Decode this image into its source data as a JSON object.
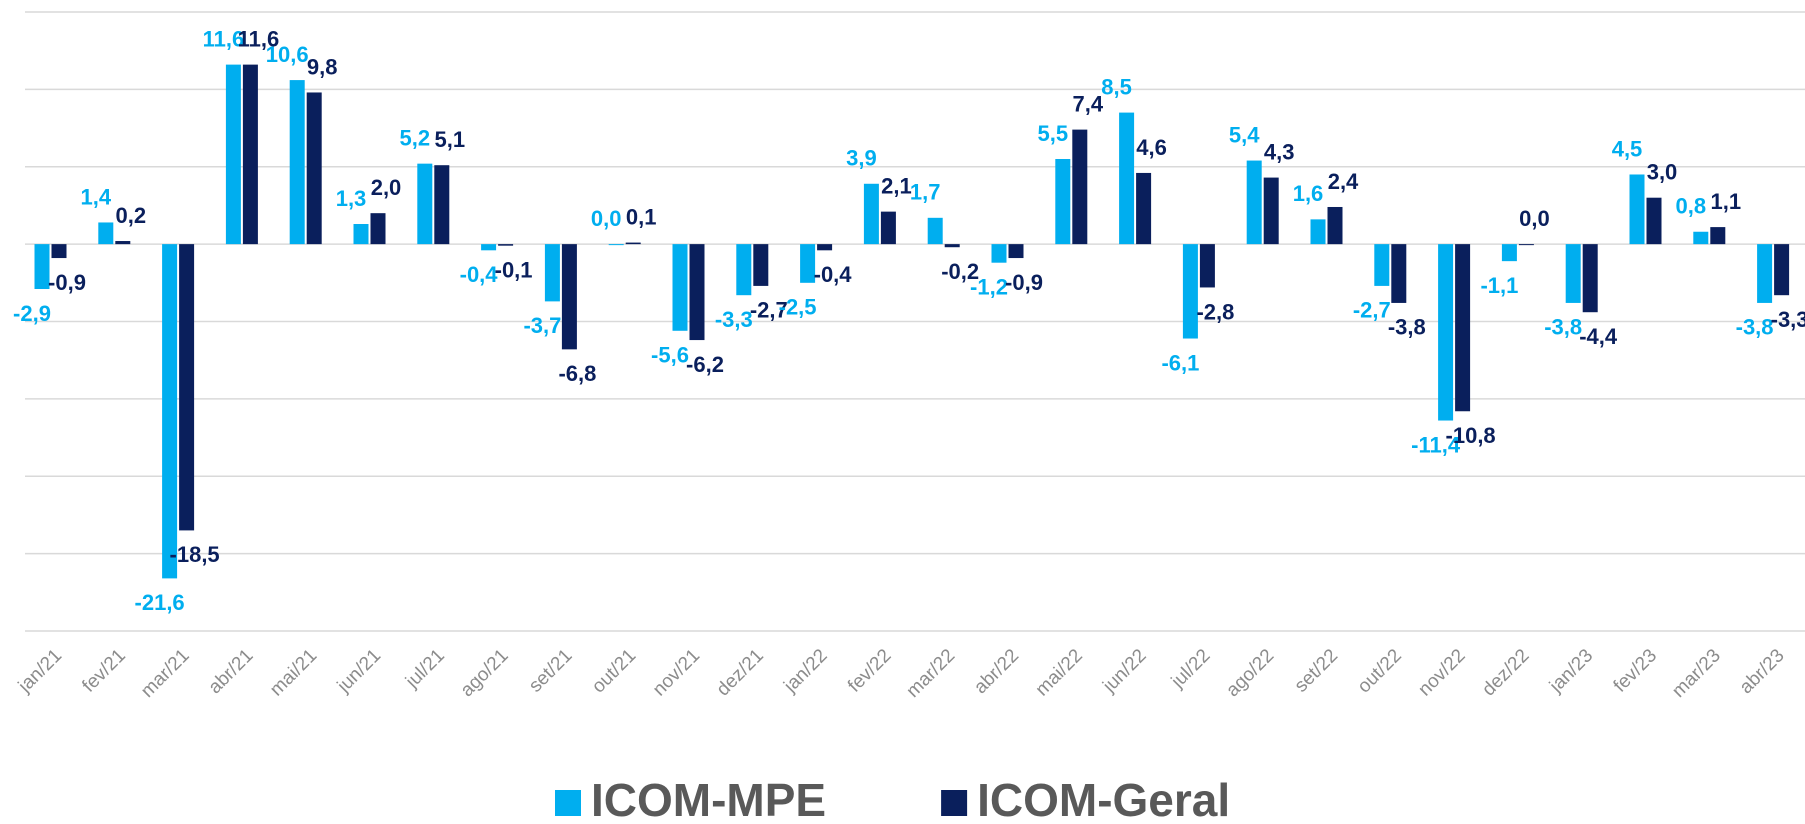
{
  "chart_data": {
    "type": "bar",
    "categories": [
      "jan/21",
      "fev/21",
      "mar/21",
      "abr/21",
      "mai/21",
      "jun/21",
      "jul/21",
      "ago/21",
      "set/21",
      "out/21",
      "nov/21",
      "dez/21",
      "jan/22",
      "fev/22",
      "mar/22",
      "abr/22",
      "mai/22",
      "jun/22",
      "jul/22",
      "ago/22",
      "set/22",
      "out/22",
      "nov/22",
      "dez/22",
      "jan/23",
      "fev/23",
      "mar/23",
      "abr/23"
    ],
    "series": [
      {
        "name": "ICOM-MPE",
        "color": "#00aeef",
        "values": [
          -2.9,
          1.4,
          -21.6,
          11.6,
          10.6,
          1.3,
          5.2,
          -0.4,
          -3.7,
          0.0,
          -5.6,
          -3.3,
          -2.5,
          3.9,
          1.7,
          -1.2,
          5.5,
          8.5,
          -6.1,
          5.4,
          1.6,
          -2.7,
          -11.4,
          -1.1,
          -3.8,
          4.5,
          0.8,
          -3.8
        ],
        "value_labels": [
          "-2,9",
          "1,4",
          "-21,6",
          "11,6",
          "10,6",
          "1,3",
          "5,2",
          "-0,4",
          "-3,7",
          "0,0",
          "-5,6",
          "-3,3",
          "-2,5",
          "3,9",
          "1,7",
          "-1,2",
          "5,5",
          "8,5",
          "-6,1",
          "5,4",
          "1,6",
          "-2,7",
          "-11,4",
          "-1,1",
          "-3,8",
          "4,5",
          "0,8",
          "-3,8"
        ]
      },
      {
        "name": "ICOM-Geral",
        "color": "#0a1f5c",
        "values": [
          -0.9,
          0.2,
          -18.5,
          11.6,
          9.8,
          2.0,
          5.1,
          -0.1,
          -6.8,
          0.1,
          -6.2,
          -2.7,
          -0.4,
          2.1,
          -0.2,
          -0.9,
          7.4,
          4.6,
          -2.8,
          4.3,
          2.4,
          -3.8,
          -10.8,
          0.0,
          -4.4,
          3.0,
          1.1,
          -3.3
        ],
        "value_labels": [
          "-0,9",
          "0,2",
          "-18,5",
          "11,6",
          "9,8",
          "2,0",
          "5,1",
          "-0,1",
          "-6,8",
          "0,1",
          "-6,2",
          "-2,7",
          "-0,4",
          "2,1",
          "-0,2",
          "-0,9",
          "7,4",
          "4,6",
          "-2,8",
          "4,3",
          "2,4",
          "-3,8",
          "-10,8",
          "0,0",
          "-4,4",
          "3,0",
          "1,1",
          "-3,3"
        ]
      }
    ],
    "ylim": [
      -25,
      15
    ],
    "yticks": [
      -25,
      -20,
      -15,
      -10,
      -5,
      0,
      5,
      10,
      15
    ],
    "grid": true,
    "legend": "bottom"
  }
}
